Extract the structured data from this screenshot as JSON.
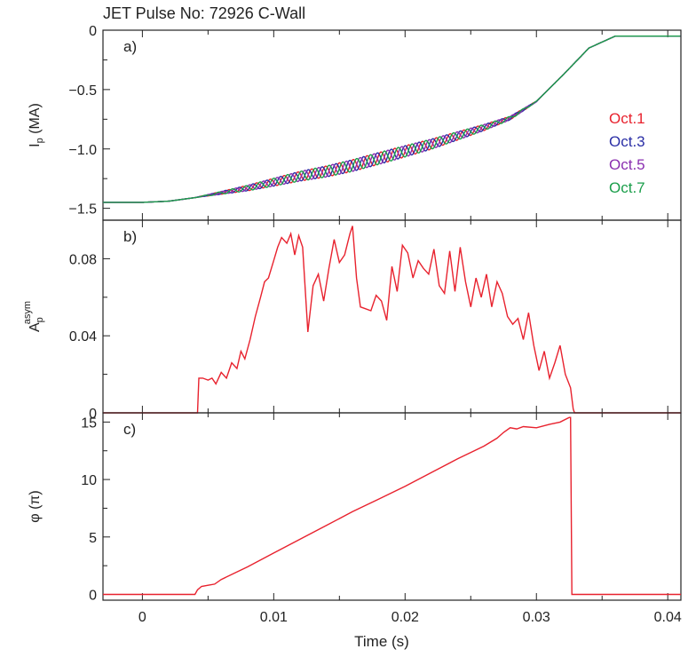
{
  "figure": {
    "title": "JET Pulse No: 72926   C-Wall",
    "xlabel": "Time (s)"
  },
  "chart_data": [
    {
      "type": "line",
      "panel_label": "a)",
      "ylabel_main": "I",
      "ylabel_sub": "p",
      "ylabel_unit": " (MA)",
      "xlim": [
        -0.003,
        0.041
      ],
      "ylim": [
        -1.6,
        0
      ],
      "xticks": [
        0,
        0.01,
        0.02,
        0.03,
        0.04
      ],
      "xtick_labels": [
        "0",
        "0.01",
        "0.02",
        "0.03",
        "0.04"
      ],
      "yticks": [
        0,
        -0.5,
        -1.0,
        -1.5
      ],
      "ytick_labels": [
        "0",
        "−0.5",
        "−1.0",
        "−1.5"
      ],
      "legend_position": "right",
      "series": [
        {
          "name": "Oct.1",
          "color": "#e8222e",
          "phase": 0.0
        },
        {
          "name": "Oct.3",
          "color": "#2b2fa6",
          "phase": 1.5708
        },
        {
          "name": "Oct.5",
          "color": "#8a2fb0",
          "phase": 3.1416
        },
        {
          "name": "Oct.7",
          "color": "#1a9e4a",
          "phase": 4.7124
        }
      ],
      "base_x": [
        -0.003,
        0.0,
        0.002,
        0.004,
        0.006,
        0.008,
        0.01,
        0.012,
        0.014,
        0.016,
        0.018,
        0.02,
        0.022,
        0.024,
        0.026,
        0.028,
        0.03,
        0.032,
        0.034,
        0.036,
        0.038,
        0.041
      ],
      "base_y": [
        -1.45,
        -1.45,
        -1.44,
        -1.41,
        -1.37,
        -1.33,
        -1.28,
        -1.23,
        -1.19,
        -1.14,
        -1.08,
        -1.02,
        -0.96,
        -0.89,
        -0.82,
        -0.74,
        -0.6,
        -0.38,
        -0.15,
        -0.05,
        -0.05,
        -0.05
      ],
      "oscillation": {
        "t_start": 0.004,
        "t_end": 0.0305,
        "peak_amplitude": 0.05,
        "cycles_per_second": 950
      }
    },
    {
      "type": "line",
      "panel_label": "b)",
      "ylabel_main": "A",
      "ylabel_sub": "p",
      "ylabel_sup": "asym",
      "xlim": [
        -0.003,
        0.041
      ],
      "ylim": [
        0,
        0.1
      ],
      "yticks": [
        0,
        0.04,
        0.08
      ],
      "ytick_labels": [
        "0",
        "0.04",
        "0.08"
      ],
      "series": [
        {
          "name": "",
          "color": "#e8222e",
          "x": [
            -0.003,
            0.0042,
            0.0043,
            0.0046,
            0.005,
            0.0053,
            0.0056,
            0.006,
            0.0064,
            0.0068,
            0.0072,
            0.0075,
            0.0078,
            0.0082,
            0.0086,
            0.009,
            0.0093,
            0.0096,
            0.01,
            0.0103,
            0.0106,
            0.011,
            0.0113,
            0.0116,
            0.0119,
            0.0122,
            0.0126,
            0.013,
            0.0134,
            0.0138,
            0.0142,
            0.0146,
            0.015,
            0.0154,
            0.0158,
            0.016,
            0.0163,
            0.0166,
            0.017,
            0.0174,
            0.0178,
            0.0182,
            0.0186,
            0.019,
            0.0194,
            0.0198,
            0.0202,
            0.0206,
            0.021,
            0.0214,
            0.0218,
            0.0222,
            0.0226,
            0.023,
            0.0234,
            0.0238,
            0.0242,
            0.0246,
            0.025,
            0.0254,
            0.0258,
            0.0262,
            0.0266,
            0.027,
            0.0274,
            0.0278,
            0.0282,
            0.0286,
            0.029,
            0.0294,
            0.0298,
            0.0302,
            0.0306,
            0.031,
            0.0314,
            0.0318,
            0.0322,
            0.0326,
            0.0328,
            0.0329,
            0.041
          ],
          "y": [
            0,
            0,
            0.018,
            0.018,
            0.017,
            0.018,
            0.015,
            0.021,
            0.018,
            0.026,
            0.023,
            0.032,
            0.028,
            0.038,
            0.05,
            0.06,
            0.068,
            0.07,
            0.079,
            0.086,
            0.091,
            0.088,
            0.093,
            0.082,
            0.092,
            0.086,
            0.042,
            0.066,
            0.072,
            0.058,
            0.075,
            0.09,
            0.078,
            0.082,
            0.093,
            0.097,
            0.07,
            0.055,
            0.054,
            0.053,
            0.061,
            0.058,
            0.048,
            0.076,
            0.063,
            0.087,
            0.083,
            0.07,
            0.079,
            0.075,
            0.072,
            0.085,
            0.066,
            0.062,
            0.084,
            0.063,
            0.086,
            0.068,
            0.055,
            0.07,
            0.06,
            0.072,
            0.055,
            0.068,
            0.062,
            0.05,
            0.046,
            0.049,
            0.038,
            0.052,
            0.035,
            0.022,
            0.032,
            0.018,
            0.026,
            0.035,
            0.02,
            0.013,
            0.002,
            0,
            0
          ]
        }
      ]
    },
    {
      "type": "line",
      "panel_label": "c)",
      "ylabel_main": "φ (π)",
      "xlim": [
        -0.003,
        0.041
      ],
      "ylim": [
        -0.5,
        15.8
      ],
      "yticks": [
        0,
        5,
        10,
        15
      ],
      "ytick_labels": [
        "0",
        "5",
        "10",
        "15"
      ],
      "series": [
        {
          "name": "",
          "color": "#e8222e",
          "x": [
            -0.003,
            0.004,
            0.0042,
            0.0045,
            0.005,
            0.0055,
            0.006,
            0.008,
            0.01,
            0.012,
            0.014,
            0.016,
            0.018,
            0.02,
            0.022,
            0.024,
            0.026,
            0.027,
            0.0275,
            0.028,
            0.0285,
            0.029,
            0.03,
            0.031,
            0.0318,
            0.0325,
            0.0326,
            0.0327,
            0.041
          ],
          "y": [
            0,
            0,
            0.4,
            0.7,
            0.8,
            0.9,
            1.3,
            2.4,
            3.6,
            4.8,
            6.0,
            7.2,
            8.3,
            9.4,
            10.6,
            11.8,
            12.9,
            13.6,
            14.1,
            14.5,
            14.4,
            14.6,
            14.5,
            14.8,
            15.0,
            15.4,
            15.4,
            0,
            0
          ]
        }
      ]
    }
  ]
}
